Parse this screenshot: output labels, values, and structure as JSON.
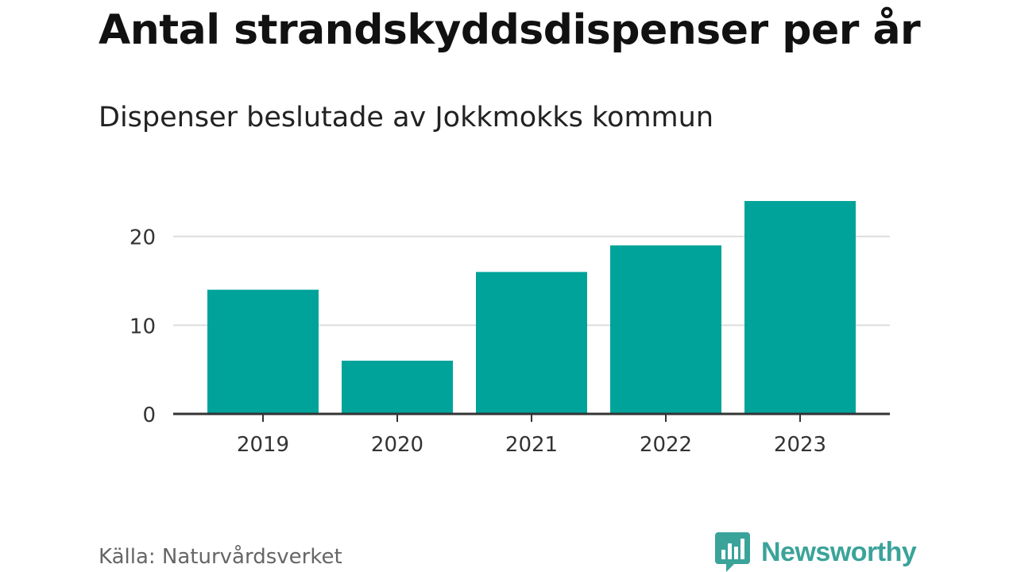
{
  "header": {
    "title": "Antal strandskyddsdispenser per år",
    "subtitle": "Dispenser beslutade av Jokkmokks kommun"
  },
  "footer": {
    "source": "Källa: Naturvårdsverket",
    "brand": "Newsworthy"
  },
  "colors": {
    "bar": "#00a39a",
    "grid": "#dddddd",
    "axis": "#333333",
    "brand": "#3aa39a"
  },
  "chart_data": {
    "type": "bar",
    "title": "Antal strandskyddsdispenser per år",
    "subtitle": "Dispenser beslutade av Jokkmokks kommun",
    "categories": [
      "2019",
      "2020",
      "2021",
      "2022",
      "2023"
    ],
    "values": [
      14,
      6,
      16,
      19,
      24
    ],
    "xlabel": "",
    "ylabel": "",
    "ylim": [
      0,
      24
    ],
    "yticks": [
      0,
      10,
      20
    ],
    "grid": true
  }
}
